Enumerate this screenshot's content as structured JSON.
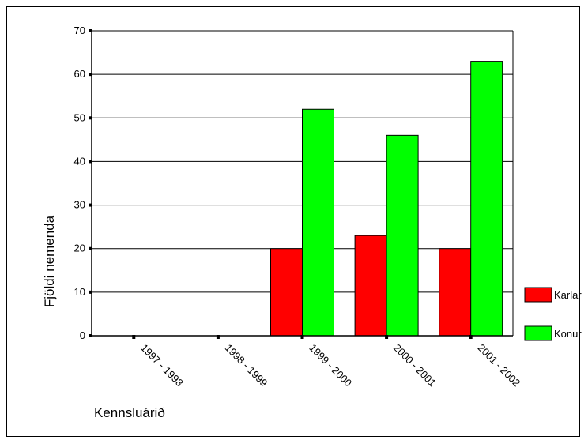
{
  "chart_data": {
    "type": "bar",
    "categories": [
      "1997 - 1998",
      "1998 - 1999",
      "1999 - 2000",
      "2000 - 2001",
      "2001 - 2002"
    ],
    "series": [
      {
        "name": "Karlar",
        "color": "#ff0000",
        "values": [
          0,
          0,
          20,
          23,
          20
        ]
      },
      {
        "name": "Konur",
        "color": "#00ff00",
        "values": [
          0,
          0,
          52,
          46,
          63
        ]
      }
    ],
    "ylim": [
      0,
      70
    ],
    "yticks": [
      0,
      10,
      20,
      30,
      40,
      50,
      60,
      70
    ],
    "xlabel": "Kennsluárið",
    "ylabel": "Fjöldi nemenda",
    "grid": true,
    "legend": "right"
  }
}
